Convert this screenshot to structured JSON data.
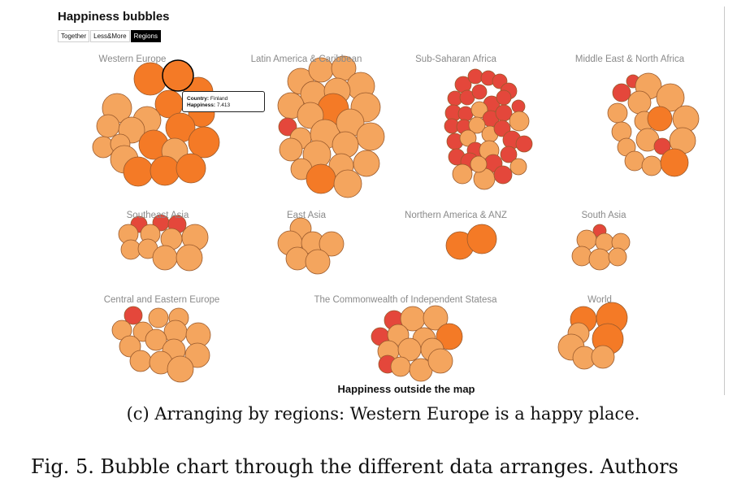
{
  "app": {
    "title": "Happiness bubbles",
    "modes": [
      "Together",
      "Less&More",
      "Regions"
    ],
    "active_mode": "Regions",
    "footer_title": "Happiness outside the map"
  },
  "tooltip": {
    "country_label": "Country:",
    "country_value": "Finland",
    "happiness_label": "Happiness:",
    "happiness_value": "7.413"
  },
  "captions": {
    "subcaption": "(c) Arranging by regions: Western Europe is a happy place.",
    "figure": "Fig. 5. Bubble chart through the different data arranges. Authors"
  },
  "colors": {
    "low": "#e4473b",
    "mid": "#f4a55e",
    "high": "#f47a26",
    "stroke": "#9a5a2c"
  },
  "chart_data": {
    "type": "bubble-clusters",
    "title": "Happiness bubbles",
    "color_encoding": "happiness score",
    "regions": [
      {
        "name": "Western Europe",
        "bubble_count": 21,
        "highlighted": "Finland"
      },
      {
        "name": "Latin America & Caribbean",
        "bubble_count": 24
      },
      {
        "name": "Sub-Saharan Africa",
        "bubble_count": 38
      },
      {
        "name": "Middle East & North Africa",
        "bubble_count": 19
      },
      {
        "name": "Southeast Asia",
        "bubble_count": 9
      },
      {
        "name": "East Asia",
        "bubble_count": 6
      },
      {
        "name": "Northern America & ANZ",
        "bubble_count": 2
      },
      {
        "name": "South Asia",
        "bubble_count": 7
      },
      {
        "name": "Central and Eastern Europe",
        "bubble_count": 17
      },
      {
        "name": "The Commonwealth of Independent Statesa",
        "bubble_count": 12
      },
      {
        "name": "World",
        "bubble_count": 6
      }
    ]
  }
}
